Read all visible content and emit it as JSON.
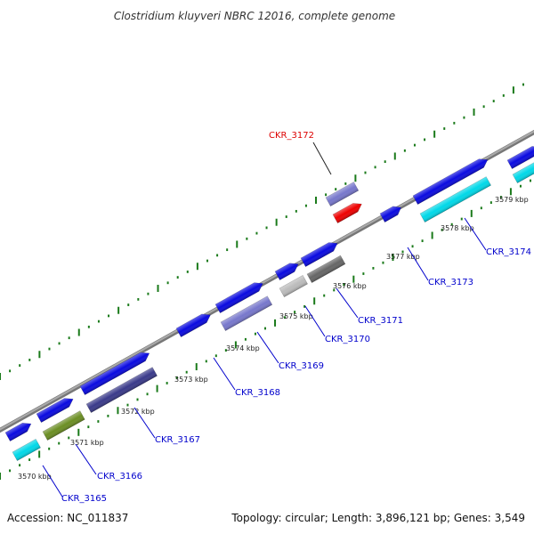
{
  "title": "Clostridium kluyveri NBRC 12016, complete genome",
  "footer": {
    "accession": "Accession: NC_011837",
    "stats": "Topology: circular; Length: 3,896,121 bp; Genes: 3,549"
  },
  "kbp_labels": [
    "3570 kbp",
    "3571 kbp",
    "3572 kbp",
    "3573 kbp",
    "3574 kbp",
    "3575 kbp",
    "3576 kbp",
    "3577 kbp",
    "3578 kbp",
    "3579 kbp"
  ],
  "gene_labels": [
    {
      "name": "CKR_3165",
      "color": "#0000cc"
    },
    {
      "name": "CKR_3166",
      "color": "#0000cc"
    },
    {
      "name": "CKR_3167",
      "color": "#0000cc"
    },
    {
      "name": "CKR_3168",
      "color": "#0000cc"
    },
    {
      "name": "CKR_3169",
      "color": "#0000cc"
    },
    {
      "name": "CKR_3170",
      "color": "#0000cc"
    },
    {
      "name": "CKR_3171",
      "color": "#0000cc"
    },
    {
      "name": "CKR_3172",
      "color": "#dd0000"
    },
    {
      "name": "CKR_3173",
      "color": "#0000cc"
    },
    {
      "name": "CKR_3174",
      "color": "#0000cc"
    }
  ],
  "colors": {
    "backbone": "#888888",
    "tick": "#1a7a1a",
    "gene_blue": "#0a0ae0",
    "cyan": "#00d8e8",
    "olive": "#6b8e23",
    "slate": "#3a3a8a",
    "lavender": "#7777cc",
    "silver": "#bbbbbb",
    "dark_gray": "#666666",
    "red": "#ee0000"
  }
}
